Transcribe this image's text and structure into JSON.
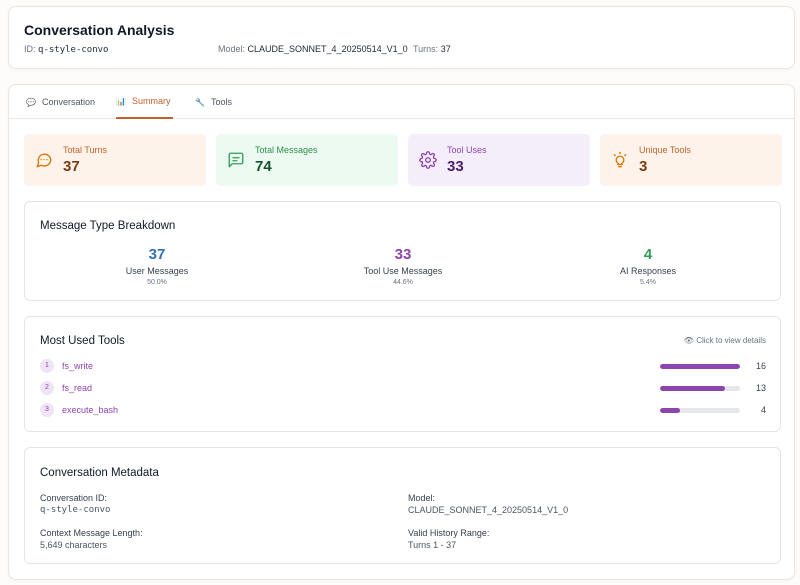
{
  "header": {
    "title": "Conversation Analysis",
    "id_label": "ID:",
    "id_value": "q-style-convo",
    "model_label": "Model:",
    "model_value": "CLAUDE_SONNET_4_20250514_V1_0",
    "turns_label": "Turns:",
    "turns_value": "37"
  },
  "tabs": [
    {
      "label": "Conversation",
      "icon": "speech-bubble-icon",
      "active": false
    },
    {
      "label": "Summary",
      "icon": "bar-chart-icon",
      "active": true
    },
    {
      "label": "Tools",
      "icon": "wrench-icon",
      "active": false
    }
  ],
  "stats": [
    {
      "label": "Total Turns",
      "value": "37",
      "icon": "chat-bubble-icon",
      "bg": "#fdf3ea",
      "label_color": "#c2622d",
      "value_color": "#7c3a12",
      "icon_color": "#d97706"
    },
    {
      "label": "Total Messages",
      "value": "74",
      "icon": "message-square-icon",
      "bg": "#edfaf1",
      "label_color": "#2f8f4e",
      "value_color": "#14532d",
      "icon_color": "#2f9e57"
    },
    {
      "label": "Tool Uses",
      "value": "33",
      "icon": "gear-icon",
      "bg": "#f4eefb",
      "label_color": "#8e44ad",
      "value_color": "#4c1d6b",
      "icon_color": "#8e44ad"
    },
    {
      "label": "Unique Tools",
      "value": "3",
      "icon": "lightbulb-icon",
      "bg": "#fdf3ea",
      "label_color": "#c2622d",
      "value_color": "#7c3a12",
      "icon_color": "#d97706"
    }
  ],
  "message_types": {
    "title": "Message Type Breakdown",
    "items": [
      {
        "count": "37",
        "label": "User Messages",
        "pct": "50.0%",
        "color": "#2f6fb8"
      },
      {
        "count": "33",
        "label": "Tool Use Messages",
        "pct": "44.6%",
        "color": "#8e44ad"
      },
      {
        "count": "4",
        "label": "AI Responses",
        "pct": "5.4%",
        "color": "#2f9e57"
      }
    ]
  },
  "tools": {
    "title": "Most Used Tools",
    "hint": "Click to view details",
    "hint_icon": "eye-icon",
    "items": [
      {
        "rank": "1",
        "name": "fs_write",
        "count": "16",
        "fraction": 1.0
      },
      {
        "rank": "2",
        "name": "fs_read",
        "count": "13",
        "fraction": 0.8125
      },
      {
        "rank": "3",
        "name": "execute_bash",
        "count": "4",
        "fraction": 0.25
      }
    ]
  },
  "metadata": {
    "title": "Conversation Metadata",
    "conv_id_label": "Conversation ID:",
    "conv_id_value": "q-style-convo",
    "model_label": "Model:",
    "model_value": "CLAUDE_SONNET_4_20250514_V1_0",
    "ctx_label": "Context Message Length:",
    "ctx_value": "5,649 characters",
    "range_label": "Valid History Range:",
    "range_value": "Turns 1 - 37"
  }
}
